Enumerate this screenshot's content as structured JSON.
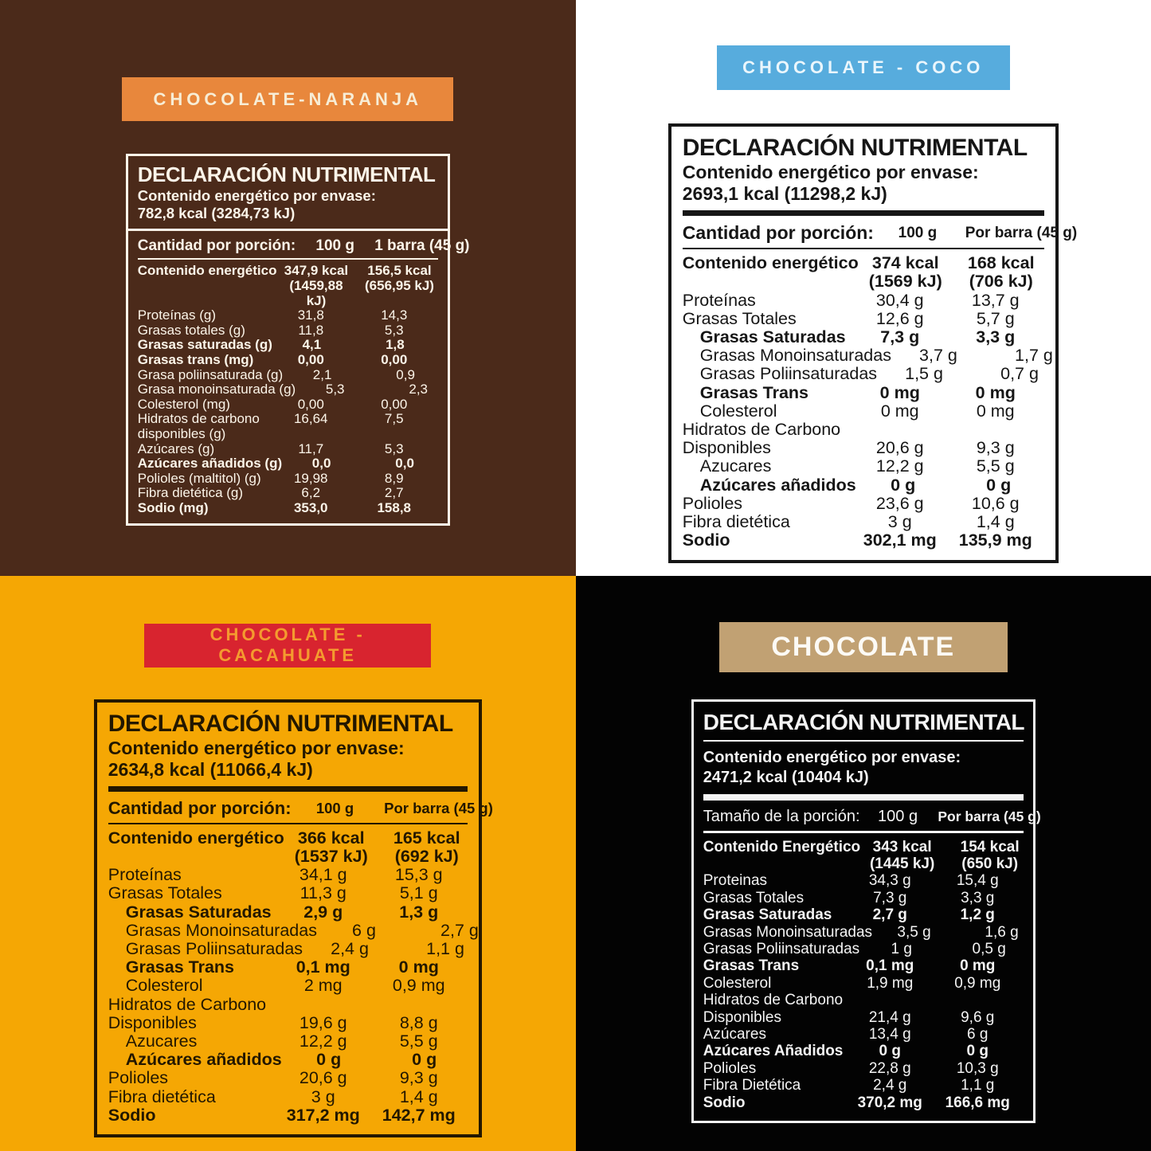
{
  "panels": [
    {
      "id": "chocolate-naranja",
      "badge": "CHOCOLATE-NARANJA",
      "colors": {
        "bg": "#4B2A1A",
        "text": "#FCF5E9",
        "badge_bg": "#E8873C",
        "badge_text": "#F7EDD6"
      },
      "title": "DECLARACIÓN NUTRIMENTAL",
      "envase_label": "Contenido energético por envase:",
      "envase_value": "782,8 kcal (3284,73 kJ)",
      "portion_label": "Cantidad por porción:",
      "portion_col1": "100 g",
      "portion_col2": "1 barra (45 g)",
      "rows": [
        {
          "label": "Contenido energético",
          "v100": "347,9 kcal\n(1459,88 kJ)",
          "vbar": "156,5 kcal\n(656,95 kJ)",
          "bold": true
        },
        {
          "label": "Proteínas (g)",
          "v100": "31,8",
          "vbar": "14,3"
        },
        {
          "label": "Grasas totales (g)",
          "v100": "11,8",
          "vbar": "5,3"
        },
        {
          "label": "Grasas saturadas (g)",
          "v100": "4,1",
          "vbar": "1,8",
          "bold": true
        },
        {
          "label": "Grasas trans (mg)",
          "v100": "0,00",
          "vbar": "0,00",
          "bold": true
        },
        {
          "label": "Grasa poliinsaturada (g)",
          "v100": "2,1",
          "vbar": "0,9"
        },
        {
          "label": "Grasa monoinsaturada (g)",
          "v100": "5,3",
          "vbar": "2,3"
        },
        {
          "label": "Colesterol (mg)",
          "v100": "0,00",
          "vbar": "0,00"
        },
        {
          "label": "Hidratos de carbono",
          "v100": "16,64",
          "vbar": "7,5"
        },
        {
          "label": "disponibles (g)",
          "v100": "",
          "vbar": ""
        },
        {
          "label": "Azúcares (g)",
          "v100": "11,7",
          "vbar": "5,3"
        },
        {
          "label": "Azúcares añadidos (g)",
          "v100": "0,0",
          "vbar": "0,0",
          "bold": true
        },
        {
          "label": "Polioles (maltitol) (g)",
          "v100": "19,98",
          "vbar": "8,9"
        },
        {
          "label": "Fibra dietética (g)",
          "v100": "6,2",
          "vbar": "2,7"
        },
        {
          "label": "Sodio (mg)",
          "v100": "353,0",
          "vbar": "158,8",
          "bold": true
        }
      ]
    },
    {
      "id": "chocolate-coco",
      "badge": "CHOCOLATE - COCO",
      "colors": {
        "bg": "#FFFFFF",
        "text": "#161616",
        "badge_bg": "#57ACDD",
        "badge_text": "#EAF6FC"
      },
      "title": "DECLARACIÓN NUTRIMENTAL",
      "envase_label": "Contenido energético por envase:",
      "envase_value": "2693,1 kcal (11298,2 kJ)",
      "portion_label": "Cantidad por porción:",
      "portion_col1": "100 g",
      "portion_col2": "Por barra (45 g)",
      "rows": [
        {
          "label": "Contenido energético",
          "v100": "374 kcal\n(1569 kJ)",
          "vbar": "168 kcal\n(706 kJ)",
          "bold": true
        },
        {
          "label": "Proteínas",
          "v100": "30,4 g",
          "vbar": "13,7 g"
        },
        {
          "label": "Grasas Totales",
          "v100": "12,6 g",
          "vbar": "5,7 g"
        },
        {
          "label": "Grasas Saturadas",
          "v100": "7,3 g",
          "vbar": "3,3 g",
          "bold": true,
          "indent": true
        },
        {
          "label": "Grasas Monoinsaturadas",
          "v100": "3,7 g",
          "vbar": "1,7 g",
          "indent": true
        },
        {
          "label": "Grasas Poliinsaturadas",
          "v100": "1,5 g",
          "vbar": "0,7 g",
          "indent": true
        },
        {
          "label": "Grasas Trans",
          "v100": "0 mg",
          "vbar": "0 mg",
          "bold": true,
          "indent": true
        },
        {
          "label": "Colesterol",
          "v100": "0 mg",
          "vbar": "0 mg",
          "indent": true
        },
        {
          "label": "Hidratos de Carbono",
          "v100": "",
          "vbar": ""
        },
        {
          "label": "Disponibles",
          "v100": "20,6 g",
          "vbar": "9,3 g"
        },
        {
          "label": "Azucares",
          "v100": "12,2 g",
          "vbar": "5,5 g",
          "indent": true
        },
        {
          "label": "Azúcares añadidos",
          "v100": "0 g",
          "vbar": "0 g",
          "bold": true,
          "indent": true
        },
        {
          "label": "Polioles",
          "v100": "23,6 g",
          "vbar": "10,6 g"
        },
        {
          "label": "Fibra dietética",
          "v100": "3 g",
          "vbar": "1,4 g"
        },
        {
          "label": "Sodio",
          "v100": "302,1 mg",
          "vbar": "135,9 mg",
          "bold": true
        }
      ]
    },
    {
      "id": "chocolate-cacahuate",
      "badge": "CHOCOLATE - CACAHUATE",
      "colors": {
        "bg": "#F5A704",
        "text": "#231700",
        "badge_bg": "#D8242F",
        "badge_text": "#F49B2F"
      },
      "title": "DECLARACIÓN NUTRIMENTAL",
      "envase_label": "Contenido energético por envase:",
      "envase_value": "2634,8 kcal (11066,4 kJ)",
      "portion_label": "Cantidad por porción:",
      "portion_col1": "100 g",
      "portion_col2": "Por barra (45 g)",
      "rows": [
        {
          "label": "Contenido energético",
          "v100": "366 kcal\n(1537 kJ)",
          "vbar": "165 kcal\n(692 kJ)",
          "bold": true
        },
        {
          "label": "Proteínas",
          "v100": "34,1 g",
          "vbar": "15,3 g"
        },
        {
          "label": "Grasas Totales",
          "v100": "11,3 g",
          "vbar": "5,1 g"
        },
        {
          "label": "Grasas Saturadas",
          "v100": "2,9 g",
          "vbar": "1,3 g",
          "bold": true,
          "indent": true
        },
        {
          "label": "Grasas Monoinsaturadas",
          "v100": "6 g",
          "vbar": "2,7 g",
          "indent": true
        },
        {
          "label": "Grasas Poliinsaturadas",
          "v100": "2,4 g",
          "vbar": "1,1 g",
          "indent": true
        },
        {
          "label": "Grasas Trans",
          "v100": "0,1 mg",
          "vbar": "0 mg",
          "bold": true,
          "indent": true
        },
        {
          "label": "Colesterol",
          "v100": "2 mg",
          "vbar": "0,9 mg",
          "indent": true
        },
        {
          "label": "Hidratos de Carbono",
          "v100": "",
          "vbar": ""
        },
        {
          "label": "Disponibles",
          "v100": "19,6 g",
          "vbar": "8,8 g"
        },
        {
          "label": "Azucares",
          "v100": "12,2 g",
          "vbar": "5,5 g",
          "indent": true
        },
        {
          "label": "Azúcares añadidos",
          "v100": "0 g",
          "vbar": "0 g",
          "bold": true,
          "indent": true
        },
        {
          "label": "Polioles",
          "v100": "20,6 g",
          "vbar": "9,3 g"
        },
        {
          "label": "Fibra dietética",
          "v100": "3 g",
          "vbar": "1,4 g"
        },
        {
          "label": "Sodio",
          "v100": "317,2 mg",
          "vbar": "142,7 mg",
          "bold": true
        }
      ]
    },
    {
      "id": "chocolate",
      "badge": "CHOCOLATE",
      "colors": {
        "bg": "#030303",
        "text": "#F4F4F4",
        "badge_bg": "#C1A173",
        "badge_text": "#FCFAF5"
      },
      "title": "DECLARACIÓN NUTRIMENTAL",
      "envase_label": "Contenido energético por envase:",
      "envase_value": "2471,2 kcal (10404 kJ)",
      "portion_label": "Tamaño de la porción:",
      "portion_col1": "100 g",
      "portion_col2": "Por barra (45 g)",
      "rows": [
        {
          "label": "Contenido Energético",
          "v100": "343 kcal\n(1445 kJ)",
          "vbar": "154 kcal\n(650 kJ)",
          "bold": true
        },
        {
          "label": "Proteinas",
          "v100": "34,3 g",
          "vbar": "15,4 g"
        },
        {
          "label": "Grasas Totales",
          "v100": "7,3 g",
          "vbar": "3,3 g"
        },
        {
          "label": "Grasas Saturadas",
          "v100": "2,7 g",
          "vbar": "1,2 g",
          "bold": true
        },
        {
          "label": "Grasas Monoinsaturadas",
          "v100": "3,5 g",
          "vbar": "1,6 g"
        },
        {
          "label": "Grasas Poliinsaturadas",
          "v100": "1 g",
          "vbar": "0,5 g"
        },
        {
          "label": "Grasas Trans",
          "v100": "0,1 mg",
          "vbar": "0 mg",
          "bold": true
        },
        {
          "label": "Colesterol",
          "v100": "1,9 mg",
          "vbar": "0,9 mg"
        },
        {
          "label": "Hidratos de Carbono",
          "v100": "",
          "vbar": ""
        },
        {
          "label": "Disponibles",
          "v100": "21,4 g",
          "vbar": "9,6 g"
        },
        {
          "label": "Azúcares",
          "v100": "13,4 g",
          "vbar": "6 g"
        },
        {
          "label": "Azúcares Añadidos",
          "v100": "0 g",
          "vbar": "0 g",
          "bold": true
        },
        {
          "label": "Polioles",
          "v100": "22,8 g",
          "vbar": "10,3 g"
        },
        {
          "label": "Fibra Dietética",
          "v100": "2,4 g",
          "vbar": "1,1 g"
        },
        {
          "label": "Sodio",
          "v100": "370,2 mg",
          "vbar": "166,6 mg",
          "bold": true
        }
      ]
    }
  ]
}
